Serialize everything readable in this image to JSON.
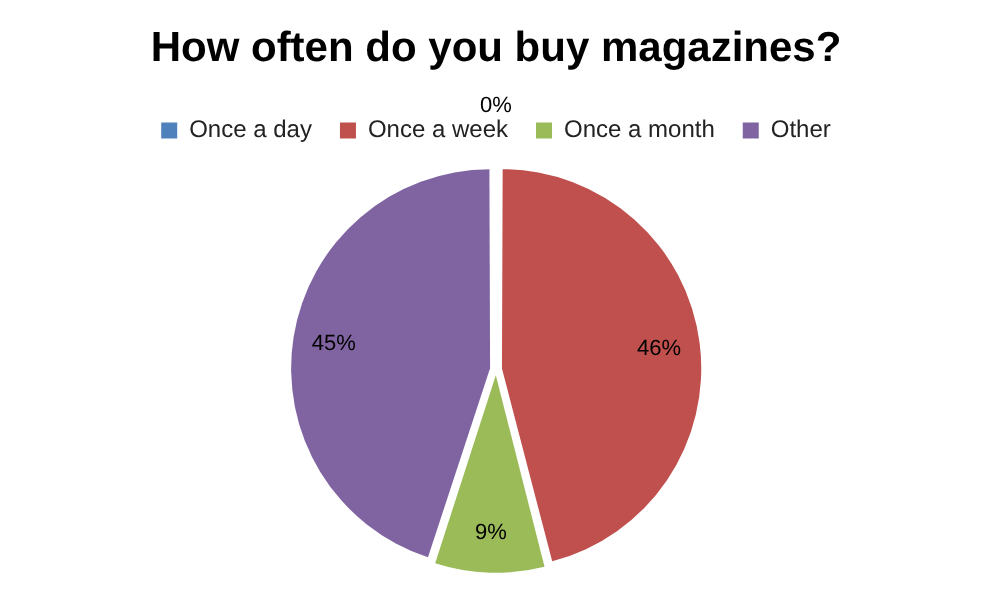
{
  "chart_data": {
    "type": "pie",
    "title": "How often do you buy magazines?",
    "categories": [
      "Once a day",
      "Once a week",
      "Once a month",
      "Other"
    ],
    "values": [
      0,
      46,
      9,
      45
    ],
    "colors": [
      "#4f81bd",
      "#c0504d",
      "#9bbb59",
      "#8064a2"
    ],
    "value_labels": [
      "0%",
      "46%",
      "9%",
      "45%"
    ],
    "legend": "top"
  }
}
